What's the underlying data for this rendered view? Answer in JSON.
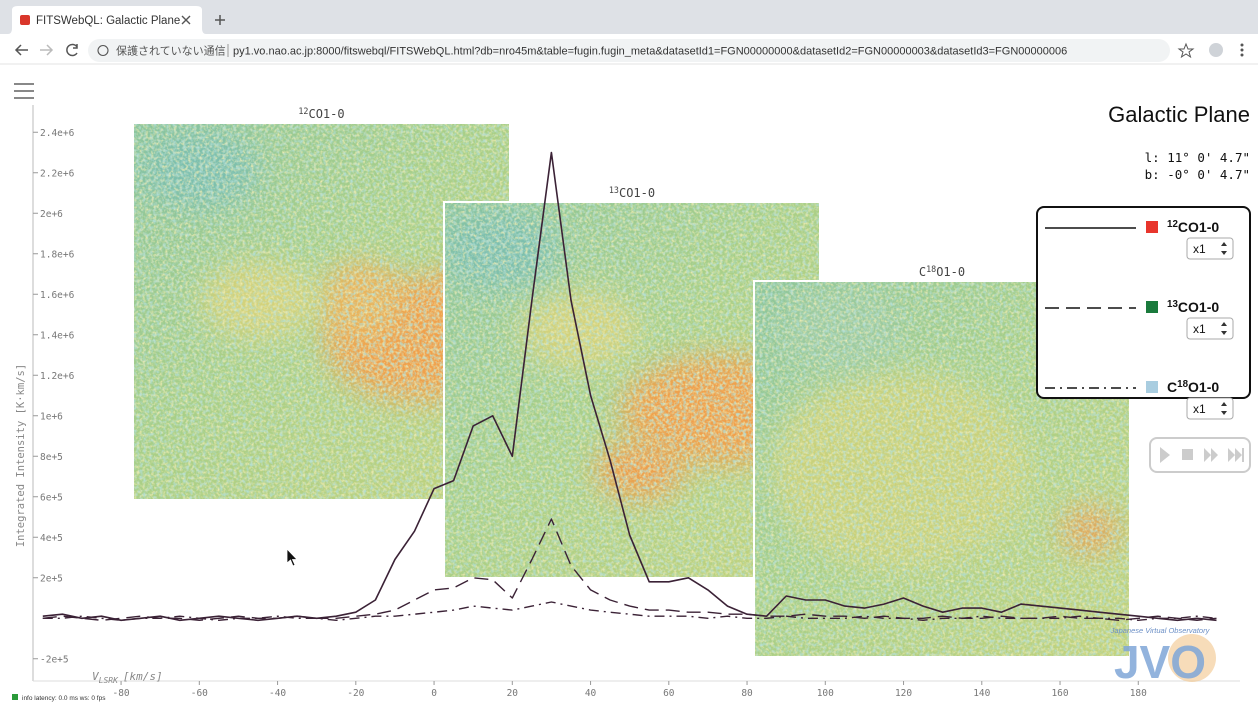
{
  "browser": {
    "tab_title": "FITSWebQL: Galactic Plane",
    "security": "保護されていない通信",
    "url": "py1.vo.nao.ac.jp:8000/fitswebql/FITSWebQL.html?db=nro45m&table=fugin.fugin_meta&datasetId1=FGN00000000&datasetId2=FGN00000003&datasetId3=FGN00000006"
  },
  "chart_data": {
    "type": "line",
    "title": "Galactic Plane",
    "coordinates": [
      "l: 11° 0' 4.7\"",
      "b: -0° 0' 4.7\""
    ],
    "y_label": "Integrated Intensity [K·km/s]",
    "x_label": {
      "symbol": "V",
      "subscript": "LSRK",
      "unit": "[km/s]"
    },
    "x": [
      -100,
      -95,
      -90,
      -85,
      -80,
      -75,
      -70,
      -65,
      -60,
      -55,
      -50,
      -45,
      -40,
      -35,
      -30,
      -25,
      -20,
      -15,
      -10,
      -5,
      0,
      5,
      10,
      15,
      20,
      25,
      30,
      35,
      40,
      45,
      50,
      55,
      60,
      65,
      70,
      75,
      80,
      85,
      90,
      95,
      100,
      105,
      110,
      115,
      120,
      125,
      130,
      135,
      140,
      145,
      150,
      155,
      160,
      165,
      170,
      175,
      180,
      185,
      190,
      195,
      200
    ],
    "series": [
      {
        "name": "12CO1-0",
        "color": "#3b2236",
        "swatch_color": "#e8352c",
        "dash": "solid",
        "scale": "x1",
        "values": [
          10000,
          20000,
          0,
          10000,
          -10000,
          0,
          10000,
          -10000,
          0,
          10000,
          0,
          -10000,
          0,
          10000,
          0,
          10000,
          30000,
          90000,
          290000,
          430000,
          640000,
          680000,
          950000,
          1000000,
          800000,
          1570000,
          2300000,
          1570000,
          1100000,
          780000,
          410000,
          180000,
          180000,
          200000,
          140000,
          60000,
          20000,
          10000,
          110000,
          90000,
          90000,
          60000,
          50000,
          70000,
          100000,
          60000,
          30000,
          50000,
          50000,
          30000,
          70000,
          60000,
          50000,
          40000,
          30000,
          20000,
          10000,
          0,
          -10000,
          0,
          -10000
        ]
      },
      {
        "name": "13CO1-0",
        "color": "#3b2236",
        "swatch_color": "#1a7a3c",
        "dash": "dashed",
        "scale": "x1",
        "values": [
          0,
          10000,
          0,
          -10000,
          0,
          10000,
          0,
          0,
          -10000,
          0,
          10000,
          0,
          0,
          10000,
          0,
          0,
          10000,
          20000,
          40000,
          90000,
          140000,
          150000,
          200000,
          190000,
          100000,
          290000,
          490000,
          260000,
          140000,
          90000,
          60000,
          40000,
          40000,
          30000,
          30000,
          20000,
          20000,
          10000,
          10000,
          20000,
          10000,
          10000,
          0,
          10000,
          0,
          0,
          10000,
          0,
          0,
          10000,
          0,
          0,
          10000,
          0,
          0,
          -10000,
          0,
          10000,
          0,
          -10000,
          0
        ]
      },
      {
        "name": "C18O1-0",
        "color": "#3b2236",
        "swatch_color": "#a9cde0",
        "dash": "dashdot",
        "scale": "x1",
        "values": [
          0,
          0,
          10000,
          0,
          -10000,
          0,
          0,
          10000,
          0,
          -10000,
          0,
          0,
          10000,
          0,
          0,
          -10000,
          0,
          10000,
          10000,
          20000,
          30000,
          40000,
          60000,
          50000,
          40000,
          60000,
          80000,
          60000,
          40000,
          30000,
          20000,
          10000,
          10000,
          10000,
          0,
          10000,
          0,
          0,
          10000,
          0,
          0,
          0,
          10000,
          0,
          0,
          -10000,
          0,
          0,
          10000,
          0,
          0,
          0,
          0,
          10000,
          0,
          0,
          -10000,
          0,
          0,
          10000,
          0
        ]
      }
    ],
    "xlim": [
      -102,
      206
    ],
    "ylim": [
      -300000,
      2500000
    ],
    "xticks": [
      -80,
      -60,
      -40,
      -20,
      0,
      20,
      40,
      60,
      80,
      100,
      120,
      140,
      160,
      180
    ],
    "yticks": [
      {
        "value": -200000,
        "label": "-2e+5"
      },
      {
        "value": 200000,
        "label": "2e+5"
      },
      {
        "value": 400000,
        "label": "4e+5"
      },
      {
        "value": 600000,
        "label": "6e+5"
      },
      {
        "value": 800000,
        "label": "8e+5"
      },
      {
        "value": 1000000,
        "label": "1e+6"
      },
      {
        "value": 1200000,
        "label": "1.2e+6"
      },
      {
        "value": 1400000,
        "label": "1.4e+6"
      },
      {
        "value": 1600000,
        "label": "1.6e+6"
      },
      {
        "value": 1800000,
        "label": "1.8e+6"
      },
      {
        "value": 2000000,
        "label": "2e+6"
      },
      {
        "value": 2200000,
        "label": "2.2e+6"
      },
      {
        "value": 2400000,
        "label": "2.4e+6"
      }
    ]
  },
  "maps": [
    {
      "label": "12CO1-0"
    },
    {
      "label": "13CO1-0"
    },
    {
      "label": "C18O1-0"
    }
  ],
  "status": "info latency: 0.0 ms ws: 0 fps",
  "logo": {
    "text": "JVO",
    "caption": "Japanese Virtual Observatory"
  }
}
